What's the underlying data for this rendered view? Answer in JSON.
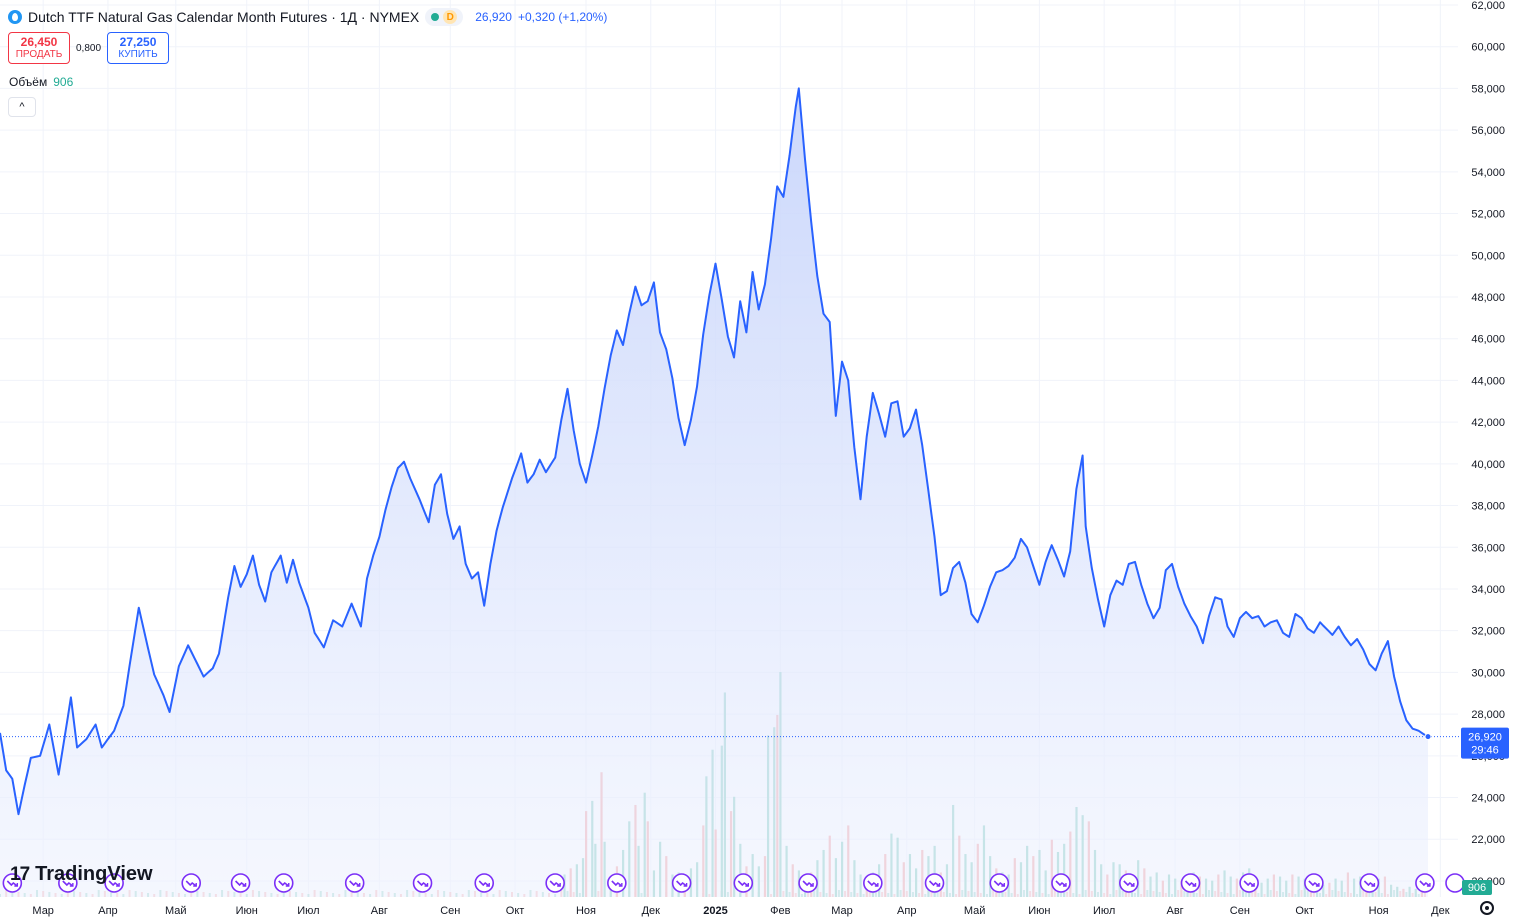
{
  "header": {
    "title": "Dutch TTF Natural Gas Calendar Month Futures · 1Д · NYMEX",
    "badge_d": "D",
    "last_price": "26,920",
    "change": "+0,320 (+1,20%)"
  },
  "trade": {
    "sell_price": "26,450",
    "sell_label": "ПРОДАТЬ",
    "spread": "0,800",
    "buy_price": "27,250",
    "buy_label": "КУПИТЬ"
  },
  "volume_legend": {
    "label": "Объём",
    "value": "906"
  },
  "logo": {
    "mark": "17",
    "text": "TradingView"
  },
  "colors": {
    "line": "#2962ff",
    "fill_top": "#c5d3fb",
    "vol_up": "#89cfc2",
    "vol_down": "#f5a6a7",
    "event_icon": "#7b2ff7"
  },
  "chart_data": {
    "type": "area",
    "title": "",
    "xlabel": "",
    "ylabel": "",
    "ylim": [
      20000,
      62000
    ],
    "y_ticks": [
      "62,000",
      "60,000",
      "58,000",
      "56,000",
      "54,000",
      "52,000",
      "50,000",
      "48,000",
      "46,000",
      "44,000",
      "42,000",
      "40,000",
      "38,000",
      "36,000",
      "34,000",
      "32,000",
      "30,000",
      "28,000",
      "26,000",
      "24,000",
      "22,000",
      "20,000"
    ],
    "x_labels": [
      {
        "label": "Мар",
        "bold": false,
        "index": 14
      },
      {
        "label": "Апр",
        "bold": false,
        "index": 35
      },
      {
        "label": "Май",
        "bold": false,
        "index": 57
      },
      {
        "label": "Июн",
        "bold": false,
        "index": 80
      },
      {
        "label": "Июл",
        "bold": false,
        "index": 100
      },
      {
        "label": "Авг",
        "bold": false,
        "index": 123
      },
      {
        "label": "Сен",
        "bold": false,
        "index": 146
      },
      {
        "label": "Окт",
        "bold": false,
        "index": 167
      },
      {
        "label": "Ноя",
        "bold": false,
        "index": 190
      },
      {
        "label": "Дек",
        "bold": false,
        "index": 211
      },
      {
        "label": "2025",
        "bold": true,
        "index": 232
      },
      {
        "label": "Фев",
        "bold": false,
        "index": 253
      },
      {
        "label": "Мар",
        "bold": false,
        "index": 273
      },
      {
        "label": "Апр",
        "bold": false,
        "index": 294
      },
      {
        "label": "Май",
        "bold": false,
        "index": 316
      },
      {
        "label": "Июн",
        "bold": false,
        "index": 337
      },
      {
        "label": "Июл",
        "bold": false,
        "index": 358
      },
      {
        "label": "Авг",
        "bold": false,
        "index": 381
      },
      {
        "label": "Сен",
        "bold": false,
        "index": 402
      },
      {
        "label": "Окт",
        "bold": false,
        "index": 423
      },
      {
        "label": "Ноя",
        "bold": false,
        "index": 447
      },
      {
        "label": "Дек",
        "bold": false,
        "index": 467
      }
    ],
    "last_value": 26920,
    "last_label": "26,920",
    "countdown": "29:46",
    "volume_last_label": "906",
    "anchors": [
      [
        0,
        27100
      ],
      [
        2,
        25300
      ],
      [
        4,
        24900
      ],
      [
        6,
        23200
      ],
      [
        8,
        24600
      ],
      [
        10,
        25900
      ],
      [
        13,
        26000
      ],
      [
        16,
        27500
      ],
      [
        19,
        25100
      ],
      [
        23,
        28800
      ],
      [
        25,
        26400
      ],
      [
        28,
        26800
      ],
      [
        31,
        27500
      ],
      [
        33,
        26400
      ],
      [
        37,
        27200
      ],
      [
        40,
        28400
      ],
      [
        42,
        30300
      ],
      [
        45,
        33100
      ],
      [
        47,
        31800
      ],
      [
        50,
        29900
      ],
      [
        53,
        28900
      ],
      [
        55,
        28100
      ],
      [
        58,
        30300
      ],
      [
        61,
        31300
      ],
      [
        63,
        30700
      ],
      [
        66,
        29800
      ],
      [
        69,
        30200
      ],
      [
        71,
        30900
      ],
      [
        74,
        33600
      ],
      [
        76,
        35100
      ],
      [
        78,
        34100
      ],
      [
        80,
        34700
      ],
      [
        82,
        35600
      ],
      [
        84,
        34200
      ],
      [
        86,
        33400
      ],
      [
        88,
        34800
      ],
      [
        91,
        35600
      ],
      [
        93,
        34300
      ],
      [
        95,
        35400
      ],
      [
        97,
        34300
      ],
      [
        100,
        33100
      ],
      [
        102,
        31900
      ],
      [
        105,
        31200
      ],
      [
        108,
        32500
      ],
      [
        111,
        32200
      ],
      [
        114,
        33300
      ],
      [
        117,
        32200
      ],
      [
        119,
        34500
      ],
      [
        121,
        35600
      ],
      [
        123,
        36500
      ],
      [
        125,
        37800
      ],
      [
        127,
        38900
      ],
      [
        129,
        39800
      ],
      [
        131,
        40100
      ],
      [
        133,
        39300
      ],
      [
        136,
        38300
      ],
      [
        139,
        37200
      ],
      [
        141,
        39000
      ],
      [
        143,
        39500
      ],
      [
        145,
        37600
      ],
      [
        147,
        36400
      ],
      [
        149,
        37000
      ],
      [
        151,
        35200
      ],
      [
        153,
        34500
      ],
      [
        155,
        34800
      ],
      [
        157,
        33200
      ],
      [
        159,
        35200
      ],
      [
        161,
        36800
      ],
      [
        163,
        37900
      ],
      [
        166,
        39300
      ],
      [
        169,
        40500
      ],
      [
        171,
        39100
      ],
      [
        173,
        39500
      ],
      [
        175,
        40200
      ],
      [
        177,
        39600
      ],
      [
        180,
        40300
      ],
      [
        182,
        42100
      ],
      [
        184,
        43600
      ],
      [
        186,
        41600
      ],
      [
        188,
        40000
      ],
      [
        190,
        39100
      ],
      [
        192,
        40400
      ],
      [
        194,
        41800
      ],
      [
        196,
        43600
      ],
      [
        198,
        45200
      ],
      [
        200,
        46400
      ],
      [
        202,
        45700
      ],
      [
        204,
        47200
      ],
      [
        206,
        48500
      ],
      [
        208,
        47600
      ],
      [
        210,
        47800
      ],
      [
        212,
        48700
      ],
      [
        214,
        46300
      ],
      [
        216,
        45500
      ],
      [
        218,
        44100
      ],
      [
        220,
        42200
      ],
      [
        222,
        40900
      ],
      [
        224,
        42100
      ],
      [
        226,
        43700
      ],
      [
        228,
        46200
      ],
      [
        230,
        48100
      ],
      [
        232,
        49600
      ],
      [
        234,
        47900
      ],
      [
        236,
        46100
      ],
      [
        238,
        45100
      ],
      [
        240,
        47800
      ],
      [
        242,
        46300
      ],
      [
        244,
        49200
      ],
      [
        246,
        47400
      ],
      [
        248,
        48600
      ],
      [
        250,
        50800
      ],
      [
        252,
        53300
      ],
      [
        254,
        52800
      ],
      [
        256,
        54800
      ],
      [
        258,
        57100
      ],
      [
        259,
        58000
      ],
      [
        261,
        54600
      ],
      [
        263,
        51600
      ],
      [
        265,
        49000
      ],
      [
        267,
        47200
      ],
      [
        269,
        46800
      ],
      [
        271,
        42300
      ],
      [
        273,
        44900
      ],
      [
        275,
        44000
      ],
      [
        277,
        40800
      ],
      [
        279,
        38300
      ],
      [
        281,
        41300
      ],
      [
        283,
        43400
      ],
      [
        285,
        42400
      ],
      [
        287,
        41300
      ],
      [
        289,
        42900
      ],
      [
        291,
        43000
      ],
      [
        293,
        41300
      ],
      [
        295,
        41700
      ],
      [
        297,
        42600
      ],
      [
        299,
        40900
      ],
      [
        301,
        38700
      ],
      [
        303,
        36500
      ],
      [
        305,
        33700
      ],
      [
        307,
        33900
      ],
      [
        309,
        35000
      ],
      [
        311,
        35300
      ],
      [
        313,
        34300
      ],
      [
        315,
        32800
      ],
      [
        317,
        32400
      ],
      [
        319,
        33200
      ],
      [
        321,
        34100
      ],
      [
        323,
        34800
      ],
      [
        325,
        34900
      ],
      [
        327,
        35100
      ],
      [
        329,
        35500
      ],
      [
        331,
        36400
      ],
      [
        333,
        36000
      ],
      [
        335,
        35100
      ],
      [
        337,
        34200
      ],
      [
        339,
        35300
      ],
      [
        341,
        36100
      ],
      [
        343,
        35400
      ],
      [
        345,
        34600
      ],
      [
        347,
        35800
      ],
      [
        349,
        38800
      ],
      [
        351,
        40400
      ],
      [
        352,
        37000
      ],
      [
        354,
        35000
      ],
      [
        356,
        33500
      ],
      [
        358,
        32200
      ],
      [
        360,
        33700
      ],
      [
        362,
        34400
      ],
      [
        364,
        34200
      ],
      [
        366,
        35200
      ],
      [
        368,
        35300
      ],
      [
        370,
        34200
      ],
      [
        372,
        33300
      ],
      [
        374,
        32600
      ],
      [
        376,
        33100
      ],
      [
        378,
        34900
      ],
      [
        380,
        35200
      ],
      [
        382,
        34100
      ],
      [
        384,
        33300
      ],
      [
        386,
        32700
      ],
      [
        388,
        32200
      ],
      [
        390,
        31400
      ],
      [
        392,
        32700
      ],
      [
        394,
        33600
      ],
      [
        396,
        33500
      ],
      [
        398,
        32200
      ],
      [
        400,
        31700
      ],
      [
        402,
        32600
      ],
      [
        404,
        32900
      ],
      [
        406,
        32600
      ],
      [
        408,
        32700
      ],
      [
        410,
        32200
      ],
      [
        412,
        32400
      ],
      [
        414,
        32500
      ],
      [
        416,
        31900
      ],
      [
        418,
        31700
      ],
      [
        420,
        32800
      ],
      [
        422,
        32600
      ],
      [
        424,
        32100
      ],
      [
        426,
        31900
      ],
      [
        428,
        32400
      ],
      [
        430,
        32100
      ],
      [
        432,
        31800
      ],
      [
        434,
        32200
      ],
      [
        436,
        31700
      ],
      [
        438,
        31300
      ],
      [
        440,
        31600
      ],
      [
        442,
        31100
      ],
      [
        444,
        30400
      ],
      [
        446,
        30100
      ],
      [
        448,
        30900
      ],
      [
        450,
        31500
      ],
      [
        452,
        29800
      ],
      [
        454,
        28600
      ],
      [
        456,
        27700
      ],
      [
        458,
        27300
      ],
      [
        460,
        27200
      ],
      [
        462,
        27000
      ],
      [
        463,
        26920
      ]
    ],
    "volume_bars": [
      [
        183,
        0.11
      ],
      [
        185,
        0.14
      ],
      [
        187,
        0.16
      ],
      [
        189,
        0.19
      ],
      [
        190,
        0.42
      ],
      [
        192,
        0.47
      ],
      [
        193,
        0.26
      ],
      [
        195,
        0.61
      ],
      [
        196,
        0.27
      ],
      [
        198,
        0.09
      ],
      [
        200,
        0.15
      ],
      [
        202,
        0.23
      ],
      [
        204,
        0.37
      ],
      [
        206,
        0.45
      ],
      [
        207,
        0.25
      ],
      [
        209,
        0.51
      ],
      [
        210,
        0.37
      ],
      [
        212,
        0.13
      ],
      [
        214,
        0.27
      ],
      [
        216,
        0.2
      ],
      [
        218,
        0.11
      ],
      [
        220,
        0.12
      ],
      [
        222,
        0.1
      ],
      [
        224,
        0.14
      ],
      [
        226,
        0.17
      ],
      [
        228,
        0.35
      ],
      [
        229,
        0.59
      ],
      [
        231,
        0.72
      ],
      [
        232,
        0.33
      ],
      [
        234,
        0.74
      ],
      [
        235,
        1.0
      ],
      [
        237,
        0.42
      ],
      [
        238,
        0.49
      ],
      [
        240,
        0.26
      ],
      [
        242,
        0.15
      ],
      [
        244,
        0.21
      ],
      [
        246,
        0.15
      ],
      [
        248,
        0.2
      ],
      [
        249,
        0.79
      ],
      [
        251,
        0.83
      ],
      [
        252,
        0.89
      ],
      [
        253,
        1.1
      ],
      [
        255,
        0.25
      ],
      [
        257,
        0.16
      ],
      [
        259,
        0.13
      ],
      [
        261,
        0.1
      ],
      [
        263,
        0.12
      ],
      [
        265,
        0.18
      ],
      [
        267,
        0.23
      ],
      [
        269,
        0.3
      ],
      [
        271,
        0.19
      ],
      [
        273,
        0.27
      ],
      [
        275,
        0.35
      ],
      [
        277,
        0.18
      ],
      [
        279,
        0.11
      ],
      [
        281,
        0.09
      ],
      [
        283,
        0.12
      ],
      [
        285,
        0.16
      ],
      [
        287,
        0.21
      ],
      [
        289,
        0.31
      ],
      [
        291,
        0.29
      ],
      [
        293,
        0.17
      ],
      [
        295,
        0.21
      ],
      [
        297,
        0.14
      ],
      [
        299,
        0.23
      ],
      [
        301,
        0.2
      ],
      [
        303,
        0.25
      ],
      [
        305,
        0.12
      ],
      [
        307,
        0.16
      ],
      [
        309,
        0.45
      ],
      [
        311,
        0.3
      ],
      [
        313,
        0.21
      ],
      [
        315,
        0.17
      ],
      [
        317,
        0.26
      ],
      [
        319,
        0.35
      ],
      [
        321,
        0.2
      ],
      [
        323,
        0.14
      ],
      [
        325,
        0.12
      ],
      [
        327,
        0.11
      ],
      [
        329,
        0.19
      ],
      [
        331,
        0.17
      ],
      [
        333,
        0.25
      ],
      [
        335,
        0.2
      ],
      [
        337,
        0.23
      ],
      [
        339,
        0.13
      ],
      [
        341,
        0.28
      ],
      [
        343,
        0.22
      ],
      [
        345,
        0.26
      ],
      [
        347,
        0.32
      ],
      [
        349,
        0.44
      ],
      [
        351,
        0.4
      ],
      [
        353,
        0.37
      ],
      [
        355,
        0.23
      ],
      [
        357,
        0.16
      ],
      [
        359,
        0.11
      ],
      [
        361,
        0.17
      ],
      [
        363,
        0.16
      ],
      [
        365,
        0.13
      ],
      [
        367,
        0.09
      ],
      [
        369,
        0.18
      ],
      [
        371,
        0.14
      ],
      [
        373,
        0.1
      ],
      [
        375,
        0.12
      ],
      [
        377,
        0.08
      ],
      [
        379,
        0.11
      ],
      [
        381,
        0.09
      ],
      [
        383,
        0.08
      ],
      [
        385,
        0.07
      ],
      [
        387,
        0.12
      ],
      [
        389,
        0.1
      ],
      [
        391,
        0.09
      ],
      [
        393,
        0.08
      ],
      [
        395,
        0.11
      ],
      [
        397,
        0.13
      ],
      [
        399,
        0.1
      ],
      [
        401,
        0.09
      ],
      [
        403,
        0.12
      ],
      [
        405,
        0.14
      ],
      [
        407,
        0.08
      ],
      [
        409,
        0.07
      ],
      [
        411,
        0.09
      ],
      [
        413,
        0.11
      ],
      [
        415,
        0.1
      ],
      [
        417,
        0.08
      ],
      [
        419,
        0.11
      ],
      [
        421,
        0.1
      ],
      [
        423,
        0.09
      ],
      [
        425,
        0.07
      ],
      [
        427,
        0.08
      ],
      [
        429,
        0.06
      ],
      [
        431,
        0.07
      ],
      [
        433,
        0.09
      ],
      [
        435,
        0.08
      ],
      [
        437,
        0.12
      ],
      [
        439,
        0.09
      ],
      [
        441,
        0.1
      ],
      [
        443,
        0.08
      ],
      [
        445,
        0.07
      ],
      [
        447,
        0.09
      ],
      [
        449,
        0.1
      ],
      [
        451,
        0.06
      ],
      [
        453,
        0.05
      ],
      [
        455,
        0.04
      ],
      [
        457,
        0.05
      ],
      [
        459,
        0.04
      ],
      [
        461,
        0.03
      ]
    ],
    "event_markers": [
      4,
      22,
      37,
      62,
      78,
      92,
      115,
      137,
      157,
      180,
      200,
      221,
      241,
      262,
      283,
      303,
      324,
      344,
      366,
      386,
      405,
      426,
      444,
      462
    ]
  }
}
